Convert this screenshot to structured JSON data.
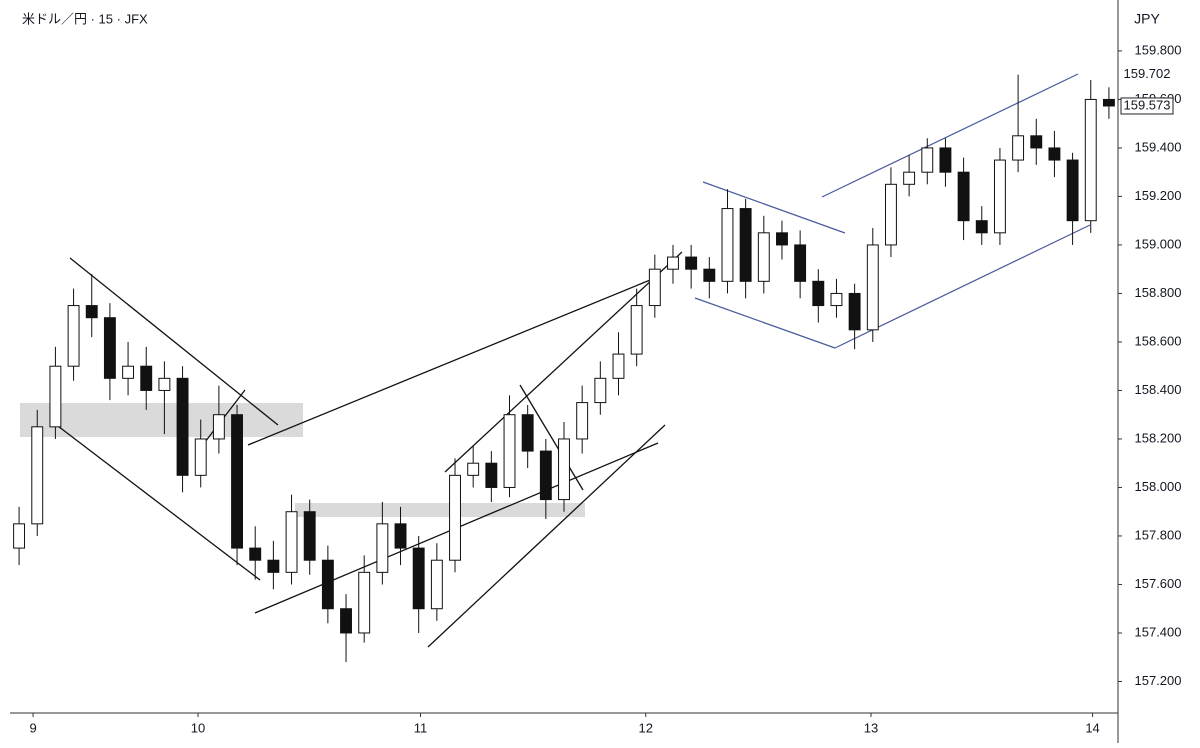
{
  "chart_data": {
    "type": "candlestick",
    "title": "米ドル／円 · 15 · JFX",
    "currency": "JPY",
    "open": [
      157.75,
      157.85,
      158.25,
      158.5,
      158.75,
      158.7,
      158.45,
      158.5,
      158.4,
      158.45,
      158.05,
      158.2,
      158.3,
      157.75,
      157.7,
      157.65,
      157.9,
      157.7,
      157.5,
      157.4,
      157.65,
      157.85,
      157.75,
      157.5,
      157.7,
      158.05,
      158.1,
      158.0,
      158.3,
      158.15,
      157.95,
      158.2,
      158.35,
      158.45,
      158.55,
      158.75,
      158.9,
      158.95,
      158.9,
      158.85,
      159.15,
      158.85,
      159.05,
      159.0,
      158.85,
      158.75,
      158.8,
      158.65,
      159.0,
      159.25,
      159.3,
      159.4,
      159.3,
      159.1,
      159.05,
      159.35,
      159.45,
      159.4,
      159.35,
      159.1,
      159.6
    ],
    "high": [
      157.92,
      158.32,
      158.58,
      158.82,
      158.88,
      158.76,
      158.6,
      158.58,
      158.52,
      158.5,
      158.28,
      158.42,
      158.34,
      157.84,
      157.78,
      157.97,
      157.95,
      157.76,
      157.56,
      157.72,
      157.94,
      157.92,
      157.8,
      157.77,
      158.12,
      158.17,
      158.15,
      158.38,
      158.34,
      158.2,
      158.27,
      158.42,
      158.52,
      158.64,
      158.82,
      158.96,
      159.0,
      159.0,
      158.95,
      159.23,
      159.19,
      159.12,
      159.1,
      159.06,
      158.9,
      158.86,
      158.84,
      159.07,
      159.32,
      159.37,
      159.44,
      159.44,
      159.36,
      159.16,
      159.4,
      159.702,
      159.52,
      159.47,
      159.38,
      159.68,
      159.65
    ],
    "low": [
      157.68,
      157.8,
      158.2,
      158.44,
      158.62,
      158.36,
      158.38,
      158.32,
      158.22,
      157.98,
      158.0,
      158.14,
      157.68,
      157.62,
      157.58,
      157.6,
      157.64,
      157.44,
      157.28,
      157.36,
      157.6,
      157.68,
      157.4,
      157.45,
      157.65,
      158.0,
      157.94,
      157.96,
      158.08,
      157.87,
      157.9,
      158.14,
      158.3,
      158.38,
      158.5,
      158.7,
      158.84,
      158.82,
      158.78,
      158.8,
      158.78,
      158.8,
      158.94,
      158.78,
      158.68,
      158.7,
      158.57,
      158.6,
      158.95,
      159.2,
      159.25,
      159.24,
      159.02,
      159.0,
      159.0,
      159.3,
      159.33,
      159.28,
      159.0,
      159.05,
      159.52
    ],
    "close": [
      157.85,
      158.25,
      158.5,
      158.75,
      158.7,
      158.45,
      158.5,
      158.4,
      158.45,
      158.05,
      158.2,
      158.3,
      157.75,
      157.7,
      157.65,
      157.9,
      157.7,
      157.5,
      157.4,
      157.65,
      157.85,
      157.75,
      157.5,
      157.7,
      158.05,
      158.1,
      158.0,
      158.3,
      158.15,
      157.95,
      158.2,
      158.35,
      158.45,
      158.55,
      158.75,
      158.9,
      158.95,
      158.9,
      158.85,
      159.15,
      158.85,
      159.05,
      159.0,
      158.85,
      158.75,
      158.8,
      158.65,
      159.0,
      159.25,
      159.3,
      159.4,
      159.3,
      159.1,
      159.05,
      159.35,
      159.45,
      159.4,
      159.35,
      159.1,
      159.6,
      159.573
    ],
    "up_color": "#ffffff",
    "down_color": "#111111",
    "wick_color": "#111111",
    "xlim": [
      0,
      61
    ],
    "xticks": [
      {
        "value": 1.27,
        "label": "9"
      },
      {
        "value": 10.35,
        "label": "10"
      },
      {
        "value": 22.6,
        "label": "11"
      },
      {
        "value": 35.0,
        "label": "12"
      },
      {
        "value": 47.4,
        "label": "13"
      },
      {
        "value": 59.6,
        "label": "14"
      }
    ],
    "ylim": [
      157.07,
      160.01
    ],
    "yticks": [
      {
        "value": 157.2,
        "label": "157.200"
      },
      {
        "value": 157.4,
        "label": "157.400"
      },
      {
        "value": 157.6,
        "label": "157.600"
      },
      {
        "value": 157.8,
        "label": "157.800"
      },
      {
        "value": 158.0,
        "label": "158.000"
      },
      {
        "value": 158.2,
        "label": "158.200"
      },
      {
        "value": 158.4,
        "label": "158.400"
      },
      {
        "value": 158.6,
        "label": "158.600"
      },
      {
        "value": 158.8,
        "label": "158.800"
      },
      {
        "value": 159.0,
        "label": "159.000"
      },
      {
        "value": 159.2,
        "label": "159.200"
      },
      {
        "value": 159.4,
        "label": "159.400"
      },
      {
        "value": 159.6,
        "label": "159.600"
      },
      {
        "value": 159.8,
        "label": "159.800"
      }
    ],
    "markers": [
      {
        "value": 159.702,
        "label": "159.702",
        "boxed": false
      },
      {
        "value": 159.573,
        "label": "159.573",
        "boxed": true
      }
    ]
  }
}
